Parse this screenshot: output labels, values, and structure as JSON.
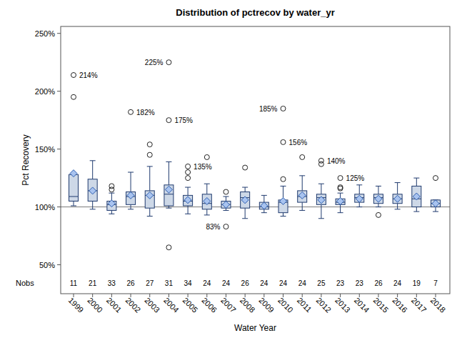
{
  "chart_data": {
    "type": "box",
    "title": "Distribution of pctrecov by water_yr",
    "x_label": "Water Year",
    "y_label": "Pct Recovery",
    "categories": [
      "1999",
      "2000",
      "2001",
      "2002",
      "2003",
      "2004",
      "2005",
      "2006",
      "2007",
      "2008",
      "2009",
      "2010",
      "2011",
      "2012",
      "2013",
      "2014",
      "2015",
      "2016",
      "2017",
      "2018"
    ],
    "boxes": [
      {
        "min": 101,
        "q1": 105,
        "median": 109,
        "q3": 128,
        "max": 128,
        "mean": 129,
        "outliers": [
          214,
          195
        ]
      },
      {
        "min": 98,
        "q1": 105,
        "median": 114,
        "q3": 124,
        "max": 140,
        "mean": 114,
        "outliers": []
      },
      {
        "min": 94,
        "q1": 97,
        "median": 102,
        "q3": 105,
        "max": 112,
        "mean": 103,
        "outliers": [
          118,
          115
        ]
      },
      {
        "min": 98,
        "q1": 102,
        "median": 109,
        "q3": 113,
        "max": 130,
        "mean": 110,
        "outliers": [
          182
        ]
      },
      {
        "min": 92,
        "q1": 99,
        "median": 110,
        "q3": 114,
        "max": 135,
        "mean": 110,
        "outliers": [
          154,
          145
        ]
      },
      {
        "min": 99,
        "q1": 101,
        "median": 111,
        "q3": 119,
        "max": 139,
        "mean": 115,
        "outliers": [
          225,
          175,
          65
        ]
      },
      {
        "min": 94,
        "q1": 101,
        "median": 105,
        "q3": 110,
        "max": 117,
        "mean": 106,
        "outliers": [
          135,
          130,
          125
        ]
      },
      {
        "min": 93,
        "q1": 98,
        "median": 103,
        "q3": 111,
        "max": 120,
        "mean": 105,
        "outliers": [
          143
        ]
      },
      {
        "min": 97,
        "q1": 99,
        "median": 102,
        "q3": 105,
        "max": 109,
        "mean": 102,
        "outliers": [
          113,
          83
        ]
      },
      {
        "min": 90,
        "q1": 99,
        "median": 108,
        "q3": 113,
        "max": 117,
        "mean": 106,
        "outliers": [
          134
        ]
      },
      {
        "min": 95,
        "q1": 98,
        "median": 100,
        "q3": 104,
        "max": 110,
        "mean": 101,
        "outliers": []
      },
      {
        "min": 92,
        "q1": 95,
        "median": 104,
        "q3": 106,
        "max": 118,
        "mean": 105,
        "outliers": [
          185,
          156,
          124
        ]
      },
      {
        "min": 97,
        "q1": 104,
        "median": 109,
        "q3": 114,
        "max": 127,
        "mean": 110,
        "outliers": [
          143
        ]
      },
      {
        "min": 90,
        "q1": 102,
        "median": 108,
        "q3": 111,
        "max": 120,
        "mean": 106,
        "outliers": [
          140,
          137
        ]
      },
      {
        "min": 95,
        "q1": 102,
        "median": 104,
        "q3": 107,
        "max": 112,
        "mean": 105,
        "outliers": [
          125,
          117,
          116
        ]
      },
      {
        "min": 100,
        "q1": 104,
        "median": 108,
        "q3": 111,
        "max": 119,
        "mean": 107,
        "outliers": []
      },
      {
        "min": 100,
        "q1": 103,
        "median": 108,
        "q3": 111,
        "max": 118,
        "mean": 107,
        "outliers": [
          93
        ]
      },
      {
        "min": 98,
        "q1": 103,
        "median": 107,
        "q3": 111,
        "max": 121,
        "mean": 107,
        "outliers": []
      },
      {
        "min": 96,
        "q1": 100,
        "median": 107,
        "q3": 118,
        "max": 125,
        "mean": 109,
        "outliers": []
      },
      {
        "min": 96,
        "q1": 100,
        "median": 103,
        "q3": 106,
        "max": 106,
        "mean": 103,
        "outliers": [
          125
        ]
      }
    ],
    "nobs_label": "Nobs",
    "nobs": [
      11,
      21,
      33,
      26,
      27,
      31,
      34,
      24,
      24,
      26,
      24,
      24,
      24,
      25,
      23,
      23,
      26,
      24,
      19,
      7
    ],
    "annotations": [
      {
        "text": "214%",
        "category": "1999",
        "y": 214,
        "position": "right"
      },
      {
        "text": "182%",
        "category": "2002",
        "y": 182,
        "position": "right"
      },
      {
        "text": "225%",
        "category": "2004",
        "y": 225,
        "position": "left"
      },
      {
        "text": "175%",
        "category": "2004",
        "y": 175,
        "position": "right"
      },
      {
        "text": "135%",
        "category": "2005",
        "y": 135,
        "position": "right"
      },
      {
        "text": "83%",
        "category": "2007",
        "y": 83,
        "position": "left"
      },
      {
        "text": "185%",
        "category": "2010",
        "y": 185,
        "position": "left"
      },
      {
        "text": "156%",
        "category": "2010",
        "y": 156,
        "position": "right"
      },
      {
        "text": "140%",
        "category": "2012",
        "y": 140,
        "position": "right"
      },
      {
        "text": "125%",
        "category": "2013",
        "y": 125,
        "position": "right"
      }
    ],
    "reference_line": 100,
    "ylim": [
      25,
      256
    ],
    "yticks": [
      {
        "value": 50,
        "label": "50%"
      },
      {
        "value": 100,
        "label": "100%"
      },
      {
        "value": 150,
        "label": "150%"
      },
      {
        "value": 200,
        "label": "200%"
      },
      {
        "value": 250,
        "label": "250%"
      }
    ],
    "color": "#cdd8e7",
    "marker": "diamond",
    "grid": false
  }
}
